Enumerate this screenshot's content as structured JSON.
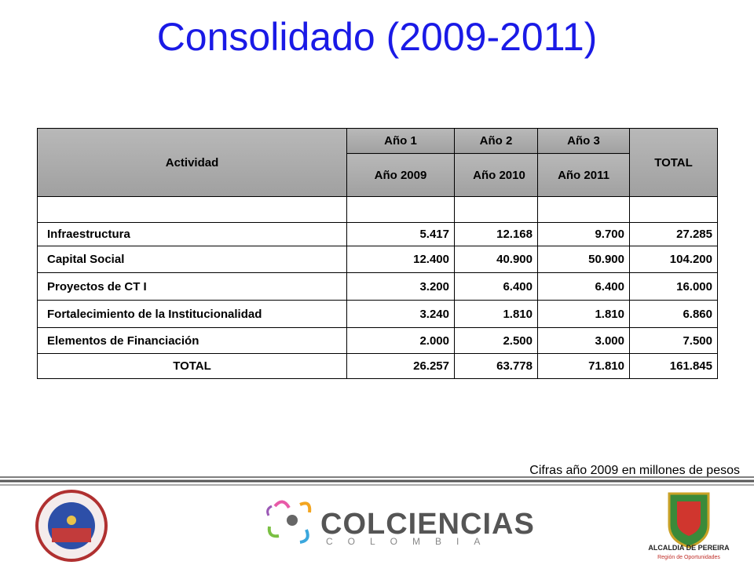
{
  "title": "Consolidado (2009-2011)",
  "table": {
    "header": {
      "activity": "Actividad",
      "years": [
        "Año 1",
        "Año 2",
        "Año 3"
      ],
      "year_labels": [
        "Año 2009",
        "Año 2010",
        "Año 2011"
      ],
      "total": "TOTAL"
    },
    "rows": [
      [
        "Infraestructura",
        "5.417",
        "12.168",
        "9.700",
        "27.285"
      ],
      [
        "Capital Social",
        "12.400",
        "40.900",
        "50.900",
        "104.200"
      ],
      [
        "Proyectos de CT I",
        "3.200",
        "6.400",
        "6.400",
        "16.000"
      ],
      [
        "Fortalecimiento de la Institucionalidad",
        "3.240",
        "1.810",
        "1.810",
        "6.860"
      ],
      [
        "Elementos de Financiación",
        "2.000",
        "2.500",
        "3.000",
        "7.500"
      ]
    ],
    "total_row": [
      "TOTAL",
      "26.257",
      "63.778",
      "71.810",
      "161.845"
    ]
  },
  "note": "Cifras año 2009 en millones de pesos",
  "logos": {
    "colciencias": "COLCIENCIAS",
    "colombia": "COLOMBIA",
    "alcaldia": "ALCALDIA DE PEREIRA",
    "slogan": "Región de Oportunidades"
  }
}
